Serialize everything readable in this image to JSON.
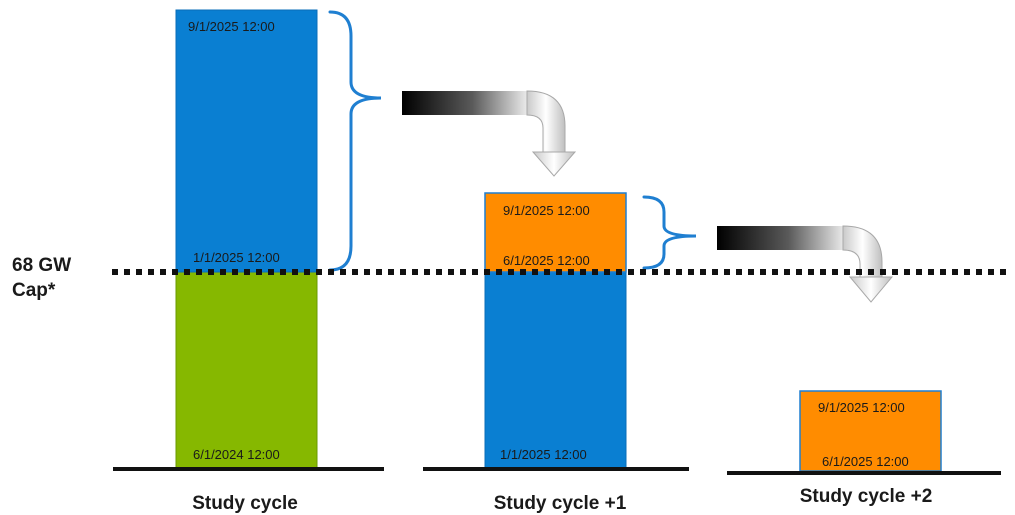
{
  "cap_label_line1": "68 GW",
  "cap_label_line2": "Cap*",
  "colors": {
    "blue": "#0a7fd2",
    "green": "#86b800",
    "orange": "#ff8c00",
    "bracket": "#1f7fd1",
    "baseline": "#111111",
    "cap_line": "#111111"
  },
  "columns": [
    {
      "name": "Study cycle",
      "segments": [
        {
          "color": "green",
          "top_label": "",
          "bottom_label": "6/1/2024 12:00"
        },
        {
          "color": "blue",
          "top_label": "9/1/2025 12:00",
          "bottom_label": "1/1/2025 12:00"
        }
      ]
    },
    {
      "name": "Study cycle +1",
      "segments": [
        {
          "color": "blue",
          "top_label": "",
          "bottom_label": "1/1/2025 12:00"
        },
        {
          "color": "orange",
          "top_label": "9/1/2025 12:00",
          "bottom_label": "6/1/2025 12:00"
        }
      ]
    },
    {
      "name": "Study cycle +2",
      "segments": [
        {
          "color": "orange",
          "top_label": "9/1/2025 12:00",
          "bottom_label": "6/1/2025 12:00"
        }
      ]
    }
  ]
}
